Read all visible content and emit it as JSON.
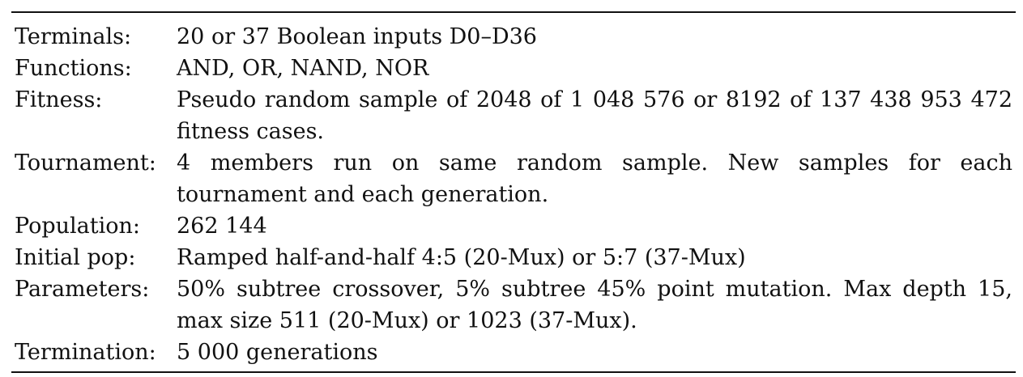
{
  "rows": [
    {
      "label": "Terminals:",
      "value": "20 or 37 Boolean inputs D0–D36"
    },
    {
      "label": "Functions:",
      "value": "AND, OR, NAND, NOR"
    },
    {
      "label": "Fitness:",
      "value": "Pseudo random sample of 2048 of 1 048 576 or 8192 of 137 438 953 472 fitness cases."
    },
    {
      "label": "Tournament:",
      "value": "4 members run on same random sample. New samples for each tournament and each generation."
    },
    {
      "label": "Population:",
      "value": "262 144"
    },
    {
      "label": "Initial pop:",
      "value": "Ramped half-and-half 4:5 (20-Mux) or 5:7 (37-Mux)"
    },
    {
      "label": "Parameters:",
      "value": "50% subtree crossover, 5% subtree 45% point mutation. Max depth 15, max size 511 (20-Mux) or 1023 (37-Mux)."
    },
    {
      "label": "Termination:",
      "value": "5 000 generations"
    }
  ]
}
